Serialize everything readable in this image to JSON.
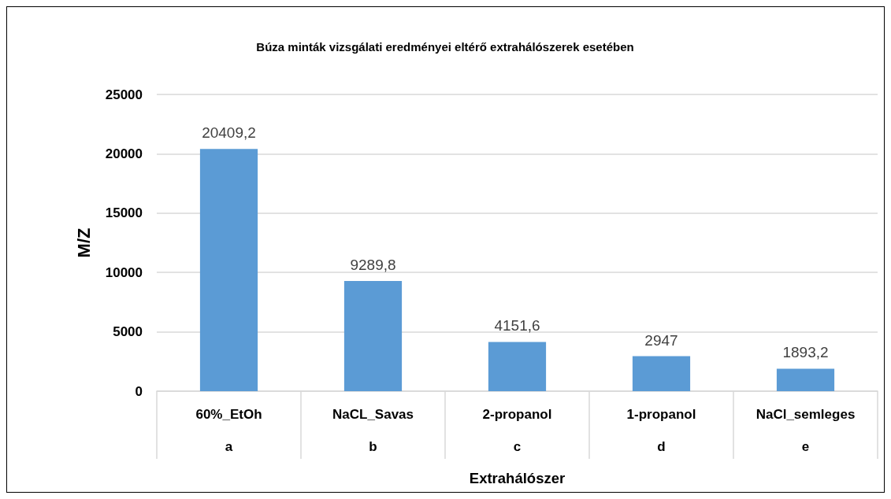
{
  "chart_data": {
    "type": "bar",
    "title": "Búza minták vizsgálati eredményei eltérő extrahálószerek esetében",
    "xlabel": "Extrahálószer",
    "ylabel": "M/Z",
    "categories": [
      "60%_EtOh\na",
      "NaCL_Savas\nb",
      "2-propanol\nc",
      "1-propanol\nd",
      "NaCl_semleges\ne"
    ],
    "values": [
      20409.2,
      9289.8,
      4151.6,
      2947,
      1893.2
    ],
    "value_labels": [
      "20409,2",
      "9289,8",
      "4151,6",
      "2947",
      "1893,2"
    ],
    "color": "#5b9bd5",
    "ylim": [
      0,
      25000
    ],
    "yticks": [
      0,
      5000,
      10000,
      15000,
      20000,
      25000
    ],
    "grid": "y"
  }
}
